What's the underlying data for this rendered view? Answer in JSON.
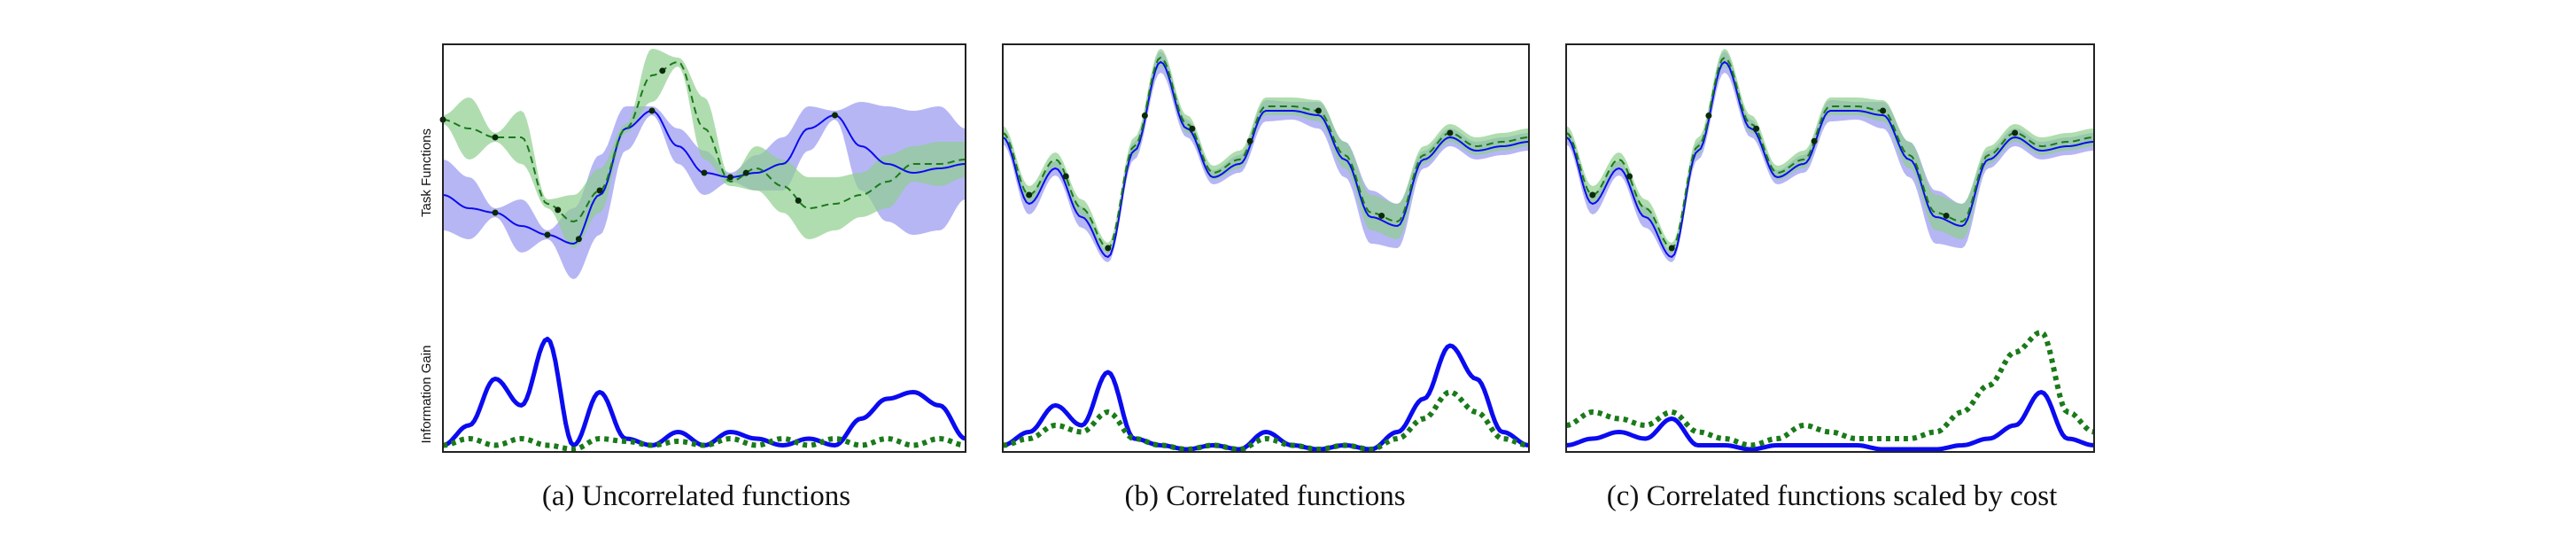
{
  "colors": {
    "blue_line": "#0b0bf0",
    "blue_band": "#8f8ff0",
    "green_line": "#1a7a1a",
    "green_band": "#8fcf8f",
    "overlap": "#5e8ca3",
    "frame": "#222222",
    "point": "#0a2a0a"
  },
  "chart_data": [
    {
      "type": "line",
      "panel": "a",
      "caption": "(a)  Uncorrelated functions",
      "ylabel_top": "Task Functions",
      "ylabel_bottom": "Information Gain",
      "x_range": [
        0,
        1
      ],
      "grid": false,
      "task_functions": {
        "ylim": [
          -1.4,
          1.5
        ],
        "x": [
          0,
          0.05,
          0.1,
          0.15,
          0.2,
          0.25,
          0.3,
          0.35,
          0.4,
          0.45,
          0.5,
          0.55,
          0.6,
          0.65,
          0.7,
          0.75,
          0.8,
          0.85,
          0.9,
          0.95,
          1.0
        ],
        "series": [
          {
            "style": "solid-blue",
            "mean": [
              -0.2,
              -0.35,
              -0.4,
              -0.55,
              -0.65,
              -0.75,
              -0.2,
              0.55,
              0.75,
              0.35,
              0.05,
              0.0,
              0.05,
              0.15,
              0.55,
              0.7,
              0.35,
              0.15,
              0.05,
              0.1,
              0.15
            ],
            "band": [
              0.4,
              0.35,
              0.05,
              0.3,
              0.05,
              0.4,
              0.45,
              0.25,
              0.05,
              0.2,
              0.25,
              0.05,
              0.2,
              0.3,
              0.25,
              0.05,
              0.5,
              0.65,
              0.7,
              0.7,
              0.4
            ]
          },
          {
            "style": "dashed-green",
            "mean": [
              0.65,
              0.55,
              0.45,
              0.45,
              -0.3,
              -0.5,
              -0.15,
              0.55,
              1.15,
              1.3,
              0.55,
              -0.05,
              0.1,
              -0.1,
              -0.35,
              -0.3,
              -0.2,
              -0.05,
              0.15,
              0.15,
              0.2
            ],
            "band": [
              0.05,
              0.35,
              0.05,
              0.3,
              0.05,
              0.3,
              0.25,
              0.05,
              0.3,
              0.05,
              0.35,
              0.05,
              0.25,
              0.3,
              0.35,
              0.3,
              0.25,
              0.3,
              0.2,
              0.25,
              0.2
            ]
          }
        ],
        "observed_points": [
          {
            "series": "solid-blue",
            "x": 0.1
          },
          {
            "series": "solid-blue",
            "x": 0.2
          },
          {
            "series": "solid-blue",
            "x": 0.26
          },
          {
            "series": "solid-blue",
            "x": 0.4
          },
          {
            "series": "solid-blue",
            "x": 0.5
          },
          {
            "series": "solid-blue",
            "x": 0.55
          },
          {
            "series": "solid-blue",
            "x": 0.75
          },
          {
            "series": "dashed-green",
            "x": 0.0
          },
          {
            "series": "dashed-green",
            "x": 0.1
          },
          {
            "series": "dashed-green",
            "x": 0.22
          },
          {
            "series": "dashed-green",
            "x": 0.3
          },
          {
            "series": "dashed-green",
            "x": 0.42
          },
          {
            "series": "dashed-green",
            "x": 0.58
          },
          {
            "series": "dashed-green",
            "x": 0.68
          }
        ]
      },
      "information_gain": {
        "ylim": [
          0,
          1
        ],
        "x": [
          0,
          0.05,
          0.1,
          0.15,
          0.2,
          0.25,
          0.3,
          0.35,
          0.4,
          0.45,
          0.5,
          0.55,
          0.6,
          0.65,
          0.7,
          0.75,
          0.8,
          0.85,
          0.9,
          0.95,
          1.0
        ],
        "series": [
          {
            "style": "solid-blue",
            "values": [
              0.05,
              0.2,
              0.55,
              0.35,
              0.85,
              0.05,
              0.45,
              0.1,
              0.05,
              0.15,
              0.05,
              0.15,
              0.1,
              0.05,
              0.1,
              0.05,
              0.25,
              0.4,
              0.45,
              0.35,
              0.1
            ]
          },
          {
            "style": "dotted-green",
            "values": [
              0.05,
              0.1,
              0.05,
              0.1,
              0.05,
              0.02,
              0.1,
              0.08,
              0.05,
              0.08,
              0.05,
              0.1,
              0.05,
              0.1,
              0.05,
              0.1,
              0.05,
              0.1,
              0.05,
              0.1,
              0.05
            ]
          }
        ]
      }
    },
    {
      "type": "line",
      "panel": "b",
      "caption": "(b)  Correlated functions",
      "x_range": [
        0,
        1
      ],
      "grid": false,
      "task_functions": {
        "ylim": [
          -1.4,
          1.5
        ],
        "x": [
          0,
          0.05,
          0.1,
          0.15,
          0.2,
          0.25,
          0.3,
          0.35,
          0.4,
          0.45,
          0.5,
          0.55,
          0.6,
          0.65,
          0.7,
          0.75,
          0.8,
          0.85,
          0.9,
          0.95,
          1.0
        ],
        "series": [
          {
            "style": "solid-blue",
            "mean": [
              0.45,
              -0.3,
              0.1,
              -0.45,
              -0.9,
              0.3,
              1.3,
              0.55,
              0.0,
              0.15,
              0.75,
              0.75,
              0.7,
              0.2,
              -0.45,
              -0.55,
              0.2,
              0.45,
              0.3,
              0.35,
              0.4
            ],
            "band": [
              0.08,
              0.12,
              0.08,
              0.12,
              0.06,
              0.1,
              0.12,
              0.1,
              0.08,
              0.1,
              0.12,
              0.1,
              0.15,
              0.2,
              0.3,
              0.25,
              0.1,
              0.1,
              0.1,
              0.1,
              0.1
            ]
          },
          {
            "style": "dashed-green",
            "mean": [
              0.5,
              -0.2,
              0.2,
              -0.35,
              -0.8,
              0.35,
              1.35,
              0.6,
              0.05,
              0.2,
              0.8,
              0.8,
              0.75,
              0.25,
              -0.4,
              -0.5,
              0.25,
              0.5,
              0.35,
              0.4,
              0.45
            ],
            "band": [
              0.08,
              0.1,
              0.08,
              0.1,
              0.06,
              0.1,
              0.1,
              0.1,
              0.08,
              0.1,
              0.1,
              0.1,
              0.12,
              0.15,
              0.2,
              0.2,
              0.1,
              0.1,
              0.1,
              0.1,
              0.1
            ]
          }
        ],
        "observed_points": [
          {
            "series": "dashed-green",
            "x": 0.05
          },
          {
            "series": "dashed-green",
            "x": 0.12
          },
          {
            "series": "dashed-green",
            "x": 0.2
          },
          {
            "series": "dashed-green",
            "x": 0.27
          },
          {
            "series": "dashed-green",
            "x": 0.36
          },
          {
            "series": "dashed-green",
            "x": 0.47
          },
          {
            "series": "dashed-green",
            "x": 0.6
          },
          {
            "series": "dashed-green",
            "x": 0.72
          },
          {
            "series": "dashed-green",
            "x": 0.85
          }
        ]
      },
      "information_gain": {
        "ylim": [
          0,
          1
        ],
        "x": [
          0,
          0.05,
          0.1,
          0.15,
          0.2,
          0.25,
          0.3,
          0.35,
          0.4,
          0.45,
          0.5,
          0.55,
          0.6,
          0.65,
          0.7,
          0.75,
          0.8,
          0.85,
          0.9,
          0.95,
          1.0
        ],
        "series": [
          {
            "style": "solid-blue",
            "values": [
              0.05,
              0.15,
              0.35,
              0.2,
              0.6,
              0.1,
              0.05,
              0.02,
              0.05,
              0.02,
              0.15,
              0.05,
              0.02,
              0.05,
              0.02,
              0.15,
              0.4,
              0.8,
              0.55,
              0.15,
              0.05
            ]
          },
          {
            "style": "dotted-green",
            "values": [
              0.05,
              0.1,
              0.2,
              0.15,
              0.3,
              0.1,
              0.05,
              0.02,
              0.05,
              0.02,
              0.1,
              0.05,
              0.02,
              0.05,
              0.02,
              0.1,
              0.25,
              0.45,
              0.3,
              0.1,
              0.05
            ]
          }
        ]
      }
    },
    {
      "type": "line",
      "panel": "c",
      "caption": "(c)  Correlated functions scaled by cost",
      "x_range": [
        0,
        1
      ],
      "grid": false,
      "task_functions": {
        "ylim": [
          -1.4,
          1.5
        ],
        "x": [
          0,
          0.05,
          0.1,
          0.15,
          0.2,
          0.25,
          0.3,
          0.35,
          0.4,
          0.45,
          0.5,
          0.55,
          0.6,
          0.65,
          0.7,
          0.75,
          0.8,
          0.85,
          0.9,
          0.95,
          1.0
        ],
        "series": [
          {
            "style": "solid-blue",
            "mean": [
              0.45,
              -0.3,
              0.1,
              -0.45,
              -0.9,
              0.3,
              1.3,
              0.55,
              0.0,
              0.15,
              0.75,
              0.75,
              0.7,
              0.2,
              -0.45,
              -0.55,
              0.2,
              0.45,
              0.3,
              0.35,
              0.4
            ],
            "band": [
              0.08,
              0.12,
              0.08,
              0.12,
              0.06,
              0.1,
              0.12,
              0.1,
              0.08,
              0.1,
              0.12,
              0.1,
              0.15,
              0.2,
              0.3,
              0.25,
              0.1,
              0.1,
              0.1,
              0.1,
              0.1
            ]
          },
          {
            "style": "dashed-green",
            "mean": [
              0.5,
              -0.2,
              0.2,
              -0.35,
              -0.8,
              0.35,
              1.35,
              0.6,
              0.05,
              0.2,
              0.8,
              0.8,
              0.75,
              0.25,
              -0.4,
              -0.5,
              0.25,
              0.5,
              0.35,
              0.4,
              0.45
            ],
            "band": [
              0.08,
              0.1,
              0.08,
              0.1,
              0.06,
              0.1,
              0.1,
              0.1,
              0.08,
              0.1,
              0.1,
              0.1,
              0.12,
              0.15,
              0.2,
              0.2,
              0.1,
              0.1,
              0.1,
              0.1,
              0.1
            ]
          }
        ],
        "observed_points": [
          {
            "series": "dashed-green",
            "x": 0.05
          },
          {
            "series": "dashed-green",
            "x": 0.12
          },
          {
            "series": "dashed-green",
            "x": 0.2
          },
          {
            "series": "dashed-green",
            "x": 0.27
          },
          {
            "series": "dashed-green",
            "x": 0.36
          },
          {
            "series": "dashed-green",
            "x": 0.47
          },
          {
            "series": "dashed-green",
            "x": 0.6
          },
          {
            "series": "dashed-green",
            "x": 0.72
          },
          {
            "series": "dashed-green",
            "x": 0.85
          }
        ]
      },
      "information_gain": {
        "ylim": [
          0,
          1
        ],
        "x": [
          0,
          0.05,
          0.1,
          0.15,
          0.2,
          0.25,
          0.3,
          0.35,
          0.4,
          0.45,
          0.5,
          0.55,
          0.6,
          0.65,
          0.7,
          0.75,
          0.8,
          0.85,
          0.9,
          0.95,
          1.0
        ],
        "series": [
          {
            "style": "solid-blue",
            "values": [
              0.05,
              0.1,
              0.15,
              0.1,
              0.25,
              0.05,
              0.05,
              0.02,
              0.05,
              0.05,
              0.05,
              0.05,
              0.02,
              0.02,
              0.02,
              0.05,
              0.1,
              0.2,
              0.45,
              0.1,
              0.05
            ]
          },
          {
            "style": "dotted-green",
            "values": [
              0.2,
              0.3,
              0.25,
              0.2,
              0.3,
              0.15,
              0.1,
              0.05,
              0.1,
              0.2,
              0.15,
              0.1,
              0.1,
              0.1,
              0.15,
              0.3,
              0.5,
              0.75,
              0.9,
              0.3,
              0.15
            ]
          }
        ]
      }
    }
  ]
}
